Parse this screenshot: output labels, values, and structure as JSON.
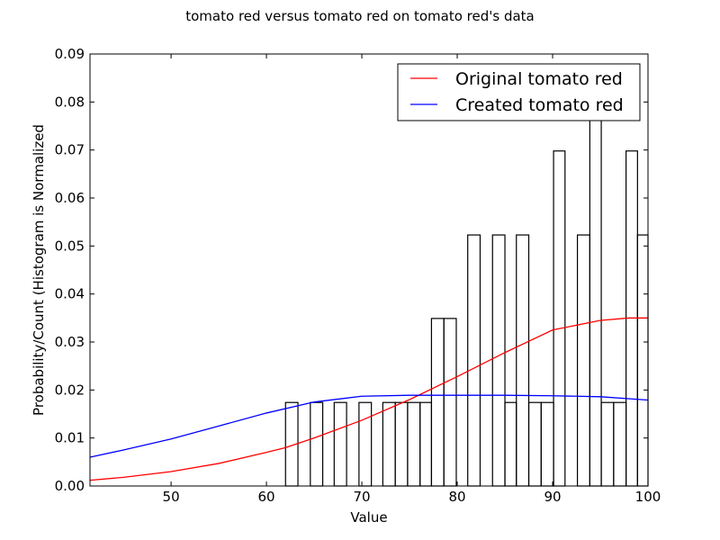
{
  "chart_data": {
    "type": "bar",
    "title": "tomato red versus tomato red on tomato red's data",
    "xlabel": "Value",
    "ylabel": "Probability/Count (Histogram is Normalized",
    "xlim": [
      41.5,
      100
    ],
    "ylim": [
      0,
      0.09
    ],
    "xticks": [
      "50",
      "60",
      "70",
      "80",
      "90",
      "100"
    ],
    "xtick_values": [
      50,
      60,
      70,
      80,
      90,
      100
    ],
    "yticks": [
      "0.00",
      "0.01",
      "0.02",
      "0.03",
      "0.04",
      "0.05",
      "0.06",
      "0.07",
      "0.08",
      "0.09"
    ],
    "ytick_values": [
      0,
      0.01,
      0.02,
      0.03,
      0.04,
      0.05,
      0.06,
      0.07,
      0.08,
      0.09
    ],
    "grid": false,
    "legend_position": "top-right",
    "histogram": {
      "edgecolor": "#000000",
      "bins": [
        {
          "x0": 62.0,
          "x1": 63.3,
          "value": 0.0174
        },
        {
          "x0": 64.6,
          "x1": 65.9,
          "value": 0.0174
        },
        {
          "x0": 67.1,
          "x1": 68.4,
          "value": 0.0174
        },
        {
          "x0": 69.7,
          "x1": 71.0,
          "value": 0.0174
        },
        {
          "x0": 72.2,
          "x1": 73.5,
          "value": 0.0174
        },
        {
          "x0": 73.5,
          "x1": 74.8,
          "value": 0.0174
        },
        {
          "x0": 74.8,
          "x1": 76.1,
          "value": 0.0174
        },
        {
          "x0": 76.1,
          "x1": 77.3,
          "value": 0.0174
        },
        {
          "x0": 77.3,
          "x1": 78.6,
          "value": 0.0349
        },
        {
          "x0": 78.6,
          "x1": 79.9,
          "value": 0.0349
        },
        {
          "x0": 81.1,
          "x1": 82.4,
          "value": 0.0523
        },
        {
          "x0": 83.7,
          "x1": 85.0,
          "value": 0.0523
        },
        {
          "x0": 85.0,
          "x1": 86.2,
          "value": 0.0174
        },
        {
          "x0": 86.2,
          "x1": 87.5,
          "value": 0.0523
        },
        {
          "x0": 87.5,
          "x1": 88.8,
          "value": 0.0174
        },
        {
          "x0": 88.8,
          "x1": 90.1,
          "value": 0.0174
        },
        {
          "x0": 90.1,
          "x1": 91.3,
          "value": 0.0698
        },
        {
          "x0": 92.6,
          "x1": 93.9,
          "value": 0.0523
        },
        {
          "x0": 93.9,
          "x1": 95.1,
          "value": 0.0772
        },
        {
          "x0": 95.1,
          "x1": 96.4,
          "value": 0.0174
        },
        {
          "x0": 96.4,
          "x1": 97.7,
          "value": 0.0174
        },
        {
          "x0": 97.7,
          "x1": 98.9,
          "value": 0.0698
        },
        {
          "x0": 98.9,
          "x1": 100.0,
          "value": 0.0523
        }
      ]
    },
    "series": [
      {
        "name": "Original tomato red",
        "type": "line",
        "color": "#ff0000",
        "x": [
          41.5,
          45,
          50,
          55,
          60,
          62,
          65,
          70,
          75,
          80,
          85,
          90,
          95,
          98,
          100
        ],
        "y": [
          0.0012,
          0.0018,
          0.003,
          0.0047,
          0.007,
          0.008,
          0.01,
          0.0137,
          0.018,
          0.0228,
          0.0278,
          0.0325,
          0.0345,
          0.035,
          0.035
        ]
      },
      {
        "name": "Created tomato red",
        "type": "line",
        "color": "#0000ff",
        "x": [
          41.5,
          45,
          50,
          55,
          60,
          65,
          70,
          75,
          80,
          85,
          90,
          95,
          100
        ],
        "y": [
          0.006,
          0.0075,
          0.0098,
          0.0125,
          0.0152,
          0.0175,
          0.0187,
          0.0189,
          0.0189,
          0.0189,
          0.0188,
          0.0186,
          0.0179
        ]
      }
    ]
  }
}
